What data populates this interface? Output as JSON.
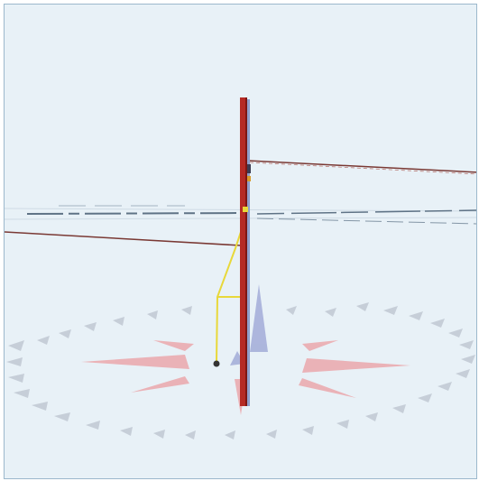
{
  "viewport": {
    "colors": {
      "sky": "#e8f1f7",
      "frame": "#9cb8cc",
      "pole": "#b52a24",
      "pole_dark": "#7e1612",
      "pole_back": "#8f9ec9",
      "wire": "#7a3934",
      "ground_wire": "#e8d83a",
      "horizon": "#5f7386",
      "compass_tick": "#c6ced8",
      "compass_red": "#eba8ac",
      "compass_blue": "#9ea8d6"
    },
    "icons": {
      "pole": "utility-pole",
      "compass": "compass-rose",
      "ground_rod": "ground-rod"
    }
  }
}
